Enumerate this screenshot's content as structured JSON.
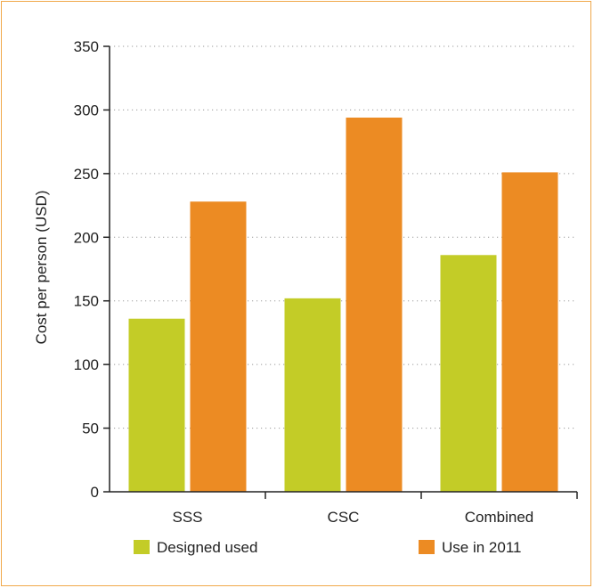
{
  "chart_data": {
    "type": "bar",
    "categories": [
      "SSS",
      "CSC",
      "Combined"
    ],
    "series": [
      {
        "name": "Designed used",
        "values": [
          136,
          152,
          186
        ],
        "color": "#c3cc27"
      },
      {
        "name": "Use in 2011",
        "values": [
          228,
          294,
          251
        ],
        "color": "#ec8b23"
      }
    ],
    "title": "",
    "xlabel": "",
    "ylabel": "Cost per person (USD)",
    "ylim": [
      0,
      350
    ],
    "yticks": [
      0,
      50,
      100,
      150,
      200,
      250,
      300,
      350
    ],
    "grid": "dotted horizontal",
    "legend_position": "bottom"
  },
  "colors": {
    "frame_border": "#f0a84a",
    "grid": "#9a9a9a",
    "axis": "#222222"
  }
}
